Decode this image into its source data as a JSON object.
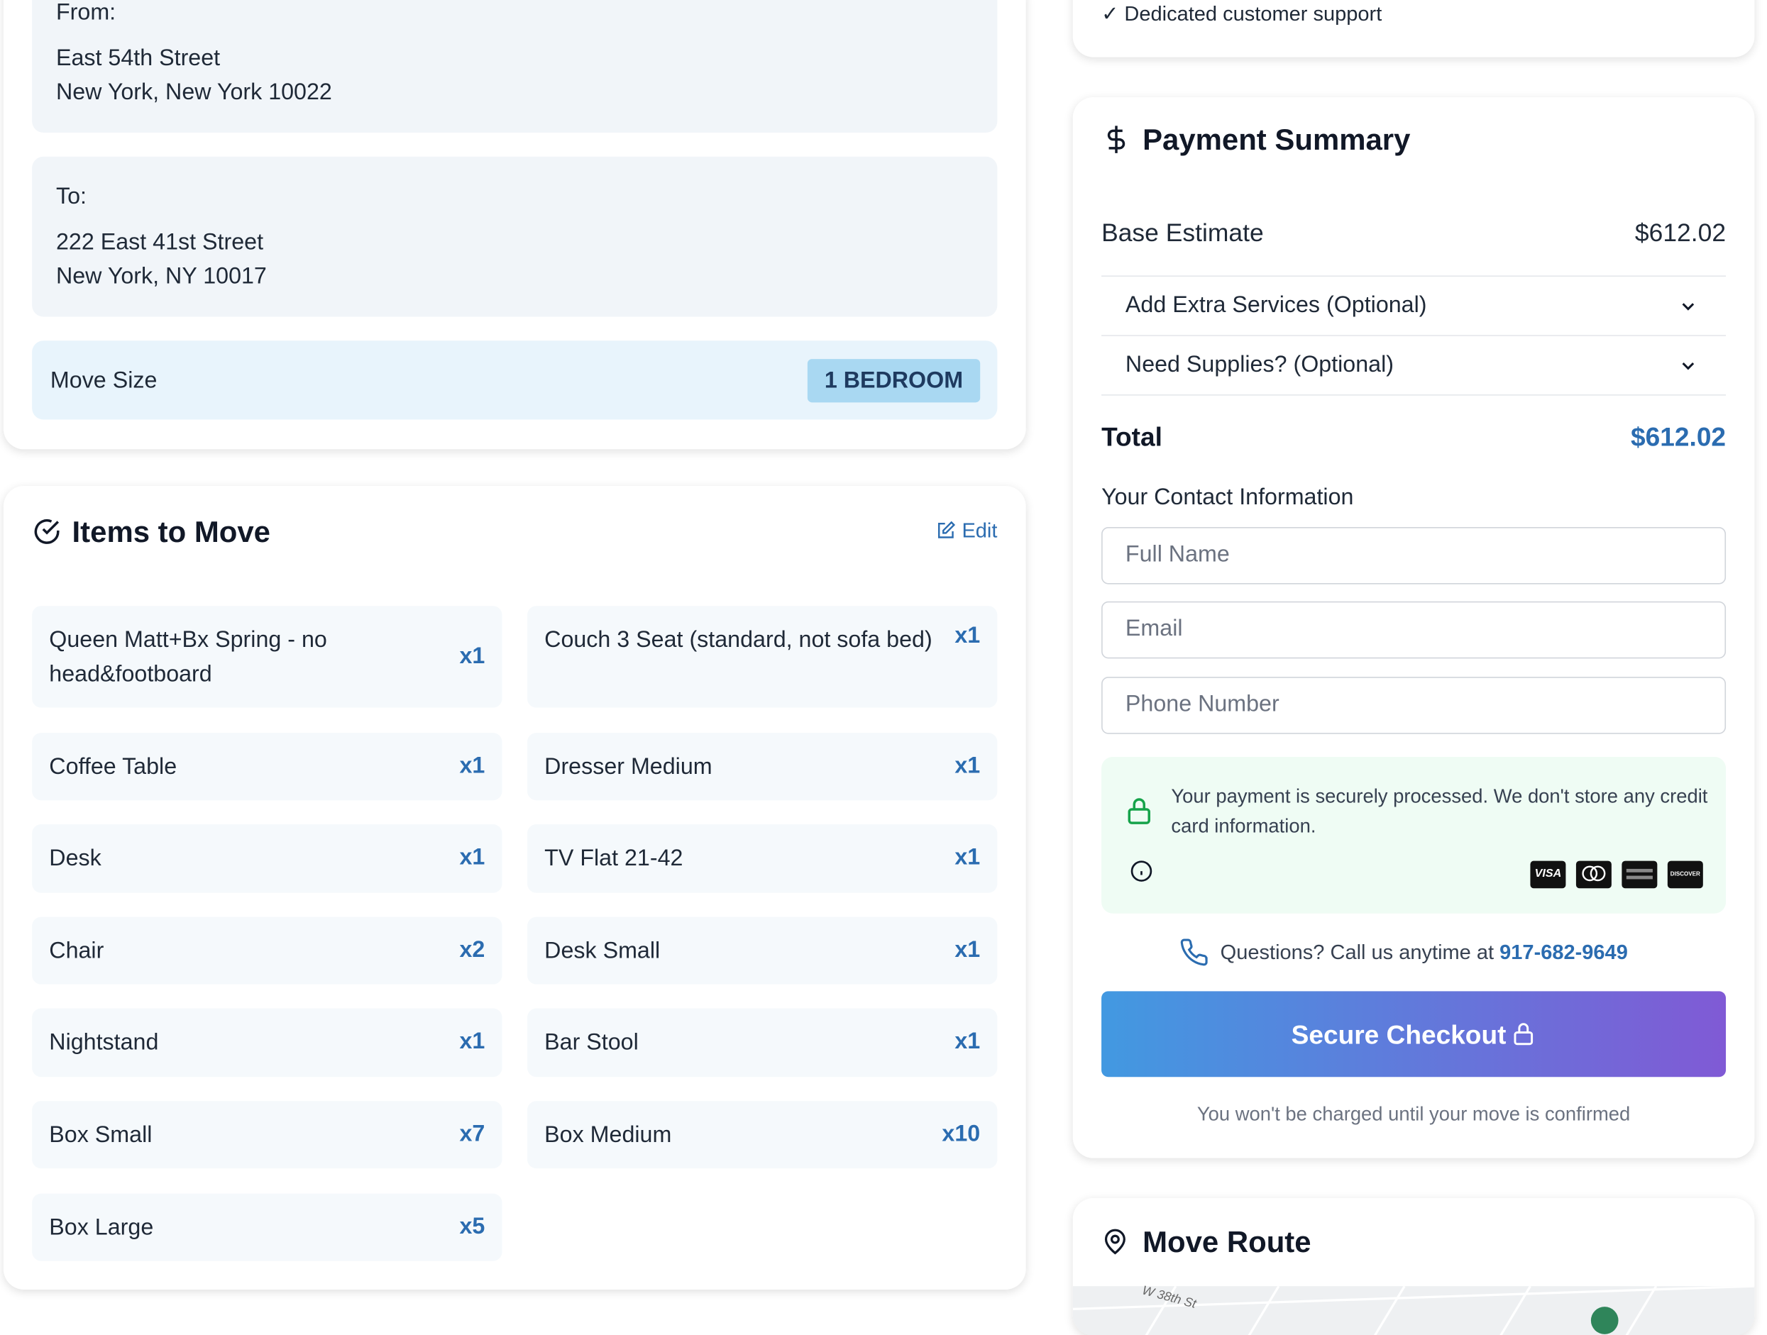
{
  "from": {
    "label": "From:",
    "line1": "East 54th Street",
    "line2": "New York, New York 10022"
  },
  "to": {
    "label": "To:",
    "line1": "222 East 41st Street",
    "line2": "New York, NY 10017"
  },
  "move_size": {
    "label": "Move Size",
    "value": "1 BEDROOM"
  },
  "items_card": {
    "title": "Items to Move",
    "edit": "Edit",
    "items": [
      {
        "name": "Queen Matt+Bx Spring - no head&footboard",
        "qty": "x1"
      },
      {
        "name": "Couch 3 Seat (standard, not sofa bed)",
        "qty": "x1"
      },
      {
        "name": "Coffee Table",
        "qty": "x1"
      },
      {
        "name": "Dresser Medium",
        "qty": "x1"
      },
      {
        "name": "Desk",
        "qty": "x1"
      },
      {
        "name": "TV Flat 21-42",
        "qty": "x1"
      },
      {
        "name": "Chair",
        "qty": "x2"
      },
      {
        "name": "Desk Small",
        "qty": "x1"
      },
      {
        "name": "Nightstand",
        "qty": "x1"
      },
      {
        "name": "Bar Stool",
        "qty": "x1"
      },
      {
        "name": "Box Small",
        "qty": "x7"
      },
      {
        "name": "Box Medium",
        "qty": "x10"
      },
      {
        "name": "Box Large",
        "qty": "x5"
      }
    ]
  },
  "features": {
    "last": "✓ Dedicated customer support"
  },
  "payment": {
    "title": "Payment Summary",
    "base_label": "Base Estimate",
    "base_value": "$612.02",
    "extra_services": "Add Extra Services (Optional)",
    "supplies": "Need Supplies? (Optional)",
    "total_label": "Total",
    "total_value": "$612.02",
    "contact_title": "Your Contact Information",
    "placeholders": [
      "Full Name",
      "Email",
      "Phone Number"
    ],
    "secure_note": "Your payment is securely processed. We don't store any credit card information.",
    "cards": [
      "VISA",
      "DISCOVER"
    ],
    "questions": "Questions? Call us anytime at",
    "phone": "917-682-9649",
    "checkout": "Secure Checkout",
    "charge_note": "You won't be charged until your move is confirmed"
  },
  "route": {
    "title": "Move Route",
    "street": "W 38th St"
  }
}
